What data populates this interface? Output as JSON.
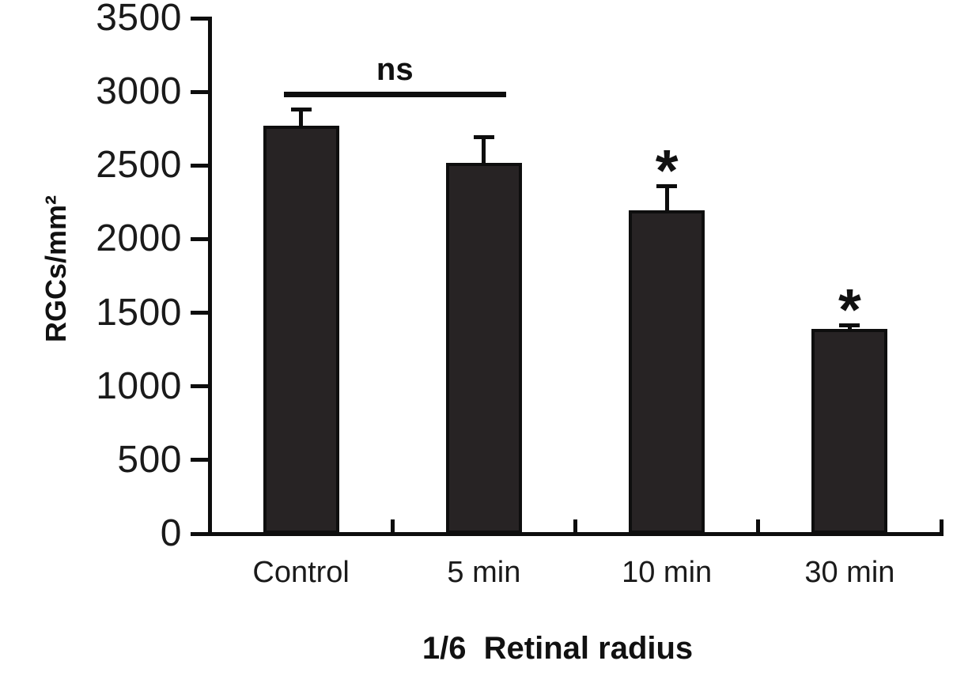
{
  "chart_data": {
    "type": "bar",
    "title": "1/6  Retinal radius",
    "ylabel": "RGCs/mm²",
    "xlabel": "",
    "categories": [
      "Control",
      "5 min",
      "10 min",
      "30 min"
    ],
    "values": [
      2770,
      2520,
      2195,
      1390
    ],
    "errors_upper": [
      110,
      170,
      165,
      25
    ],
    "ylim": [
      0,
      3500
    ],
    "ytick_step": 500,
    "ytick_labels": [
      "0",
      "500",
      "1000",
      "1500",
      "2000",
      "2500",
      "3000",
      "3500"
    ],
    "grid": false,
    "legend": null,
    "bar_color": "#272324",
    "axis_color": "#0d0d0d",
    "annotations": {
      "ns_bracket": {
        "label": "ns",
        "from_category": "Control",
        "to_category": "5 min"
      },
      "asterisk_symbol": "*",
      "asterisk_categories": [
        "10 min",
        "30 min"
      ]
    }
  }
}
